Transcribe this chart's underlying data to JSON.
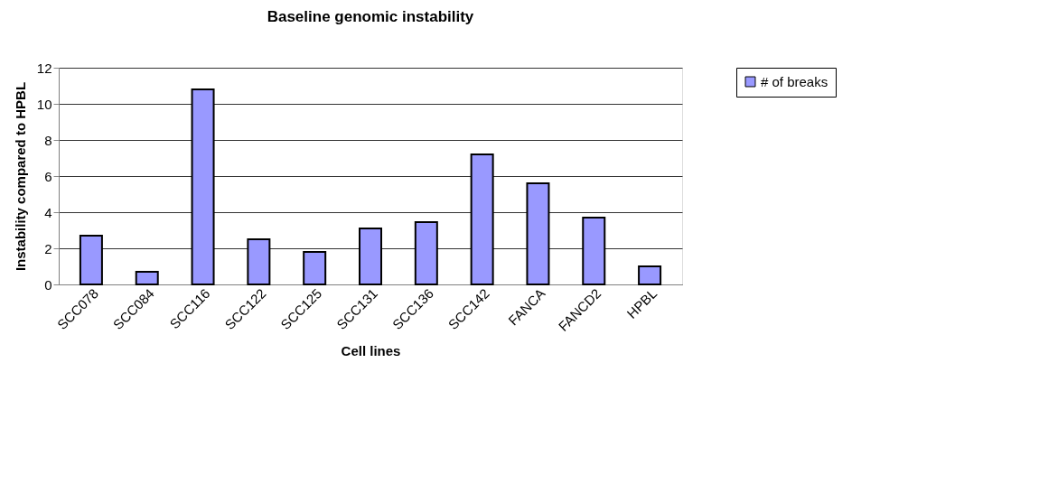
{
  "chart_data": {
    "type": "bar",
    "title": "Baseline genomic instability",
    "xlabel": "Cell lines",
    "ylabel": "Instability compared to HPBL",
    "categories": [
      "SCC078",
      "SCC084",
      "SCC116",
      "SCC122",
      "SCC125",
      "SCC131",
      "SCC136",
      "SCC142",
      "FANCA",
      "FANCD2",
      "HPBL"
    ],
    "series": [
      {
        "name": "# of breaks",
        "color": "#9999ff",
        "values": [
          2.7,
          0.7,
          10.8,
          2.5,
          1.8,
          3.1,
          3.45,
          7.2,
          5.6,
          3.7,
          1.0
        ]
      }
    ],
    "ylim": [
      0,
      12
    ],
    "yticks": [
      0,
      2,
      4,
      6,
      8,
      10,
      12
    ],
    "grid": "y",
    "legend": "right"
  }
}
